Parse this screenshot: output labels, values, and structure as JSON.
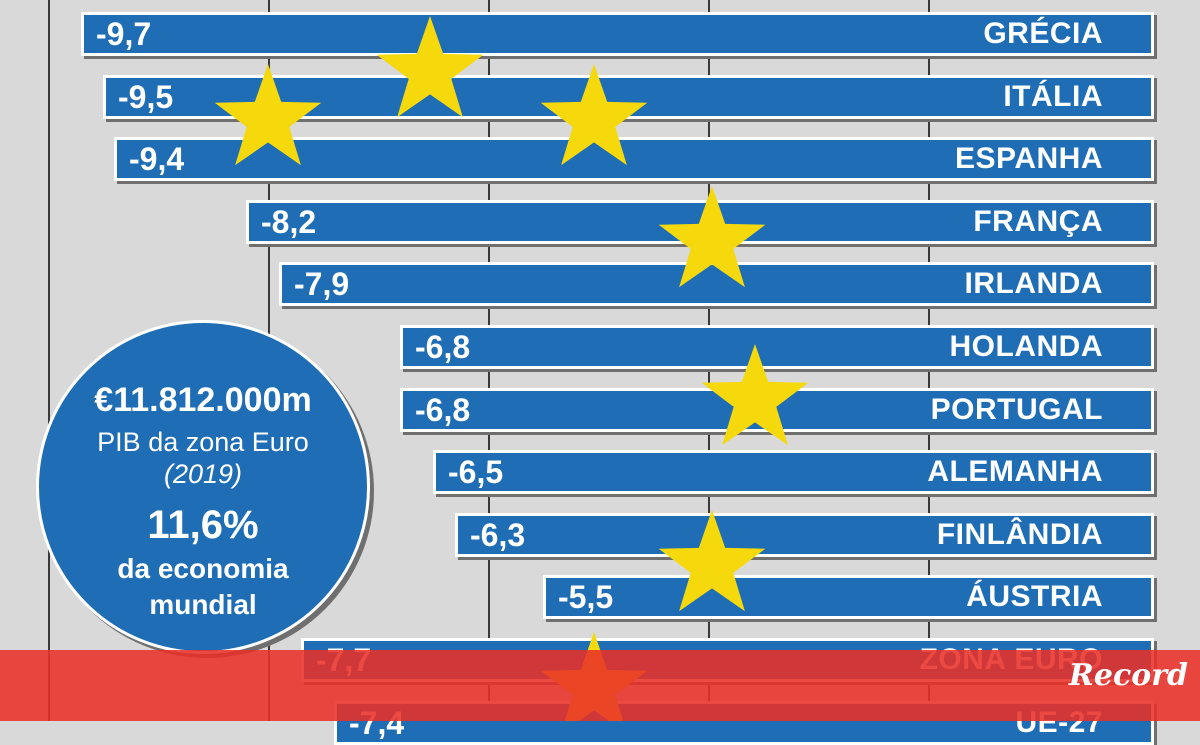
{
  "chart_data": {
    "type": "bar",
    "orientation": "horizontal",
    "categories": [
      "GRÉCIA",
      "ITÁLIA",
      "ESPANHA",
      "FRANÇA",
      "IRLANDA",
      "HOLANDA",
      "PORTUGAL",
      "ALEMANHA",
      "FINLÂNDIA",
      "ÁUSTRIA",
      "ZONA EURO",
      "UE-27"
    ],
    "values": [
      -9.7,
      -9.5,
      -9.4,
      -8.2,
      -7.9,
      -6.8,
      -6.8,
      -6.5,
      -6.3,
      -5.5,
      -7.7,
      -7.4
    ],
    "value_labels": [
      "-9,7",
      "-9,5",
      "-9,4",
      "-8,2",
      "-7,9",
      "-6,8",
      "-6,8",
      "-6,5",
      "-6,3",
      "-5,5",
      "-7,7",
      "-7,4"
    ],
    "title": "",
    "xlabel": "",
    "ylabel": "",
    "xlim": [
      -10,
      0
    ],
    "grid": true,
    "bar_color": "#1f6db5",
    "decorations": "yellow-stars"
  },
  "info_bubble": {
    "amount": "€11.812.000m",
    "amount_caption": "PIB da zona Euro",
    "year": "(2019)",
    "share": "11,6%",
    "share_caption_1": "da economia",
    "share_caption_2": "mundial"
  },
  "overlay": {
    "color": "#e83028",
    "logo_text": "Record"
  },
  "colors": {
    "background": "#d9d9d9",
    "bar": "#1f6db5",
    "star": "#f5d90c",
    "text": "#ffffff"
  }
}
